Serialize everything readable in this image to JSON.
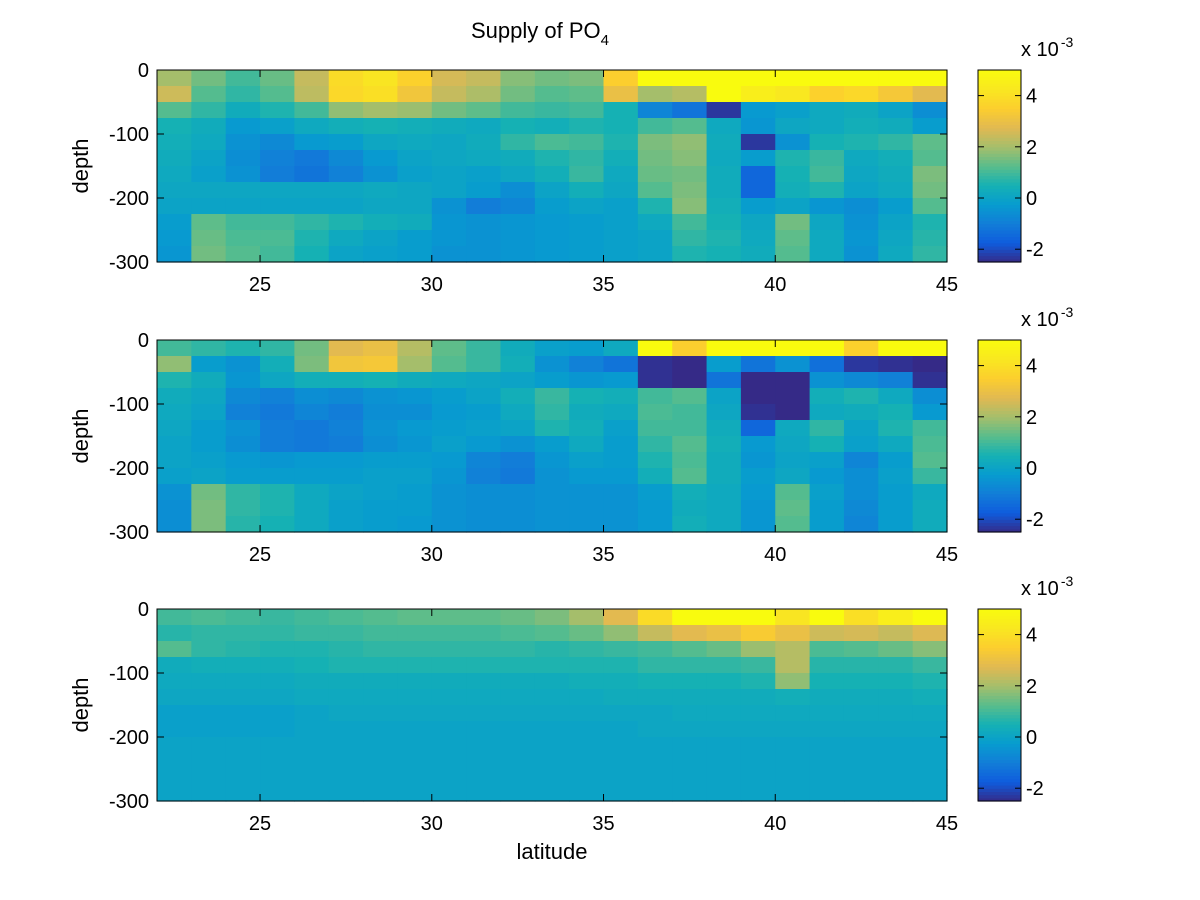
{
  "figure": {
    "title": "Supply of PO",
    "title_subscript": "4"
  },
  "colormap": "parula",
  "chart_data": [
    {
      "type": "heatmap",
      "panel": "top",
      "ylabel": "depth",
      "xlabel": "",
      "xlim": [
        22,
        45
      ],
      "ylim": [
        -300,
        0
      ],
      "xticks": [
        25,
        30,
        35,
        40,
        45
      ],
      "yticks": [
        0,
        -100,
        -200,
        -300
      ],
      "x_start": 22,
      "x_step": 1,
      "y_start": 0,
      "y_step": -25,
      "clim": [
        -2.5,
        5
      ],
      "colorbar": {
        "ticks": [
          4,
          2,
          0,
          -2
        ],
        "exponent_label": "x 10",
        "exponent": "-3"
      },
      "z": [
        [
          2.0,
          1.5,
          1.0,
          1.4,
          2.4,
          3.9,
          4.2,
          3.6,
          2.6,
          2.4,
          1.7,
          1.5,
          1.6,
          3.5,
          5.0,
          5.0,
          5.0,
          5.0,
          5.0,
          5.0,
          5.0,
          5.0,
          5.0
        ],
        [
          2.5,
          1.2,
          0.8,
          1.2,
          2.3,
          3.8,
          4.0,
          3.2,
          2.4,
          2.1,
          1.5,
          1.2,
          1.3,
          3.0,
          2.0,
          2.2,
          5.0,
          4.5,
          4.3,
          3.6,
          3.8,
          3.3,
          2.8
        ],
        [
          1.2,
          0.8,
          0.3,
          0.6,
          1.0,
          1.8,
          2.0,
          1.9,
          1.5,
          1.3,
          1.0,
          0.9,
          1.0,
          0.5,
          -0.8,
          -1.2,
          -2.3,
          -0.3,
          -0.1,
          0.2,
          0.3,
          0.0,
          -0.6
        ],
        [
          0.5,
          0.3,
          -0.3,
          -0.1,
          0.2,
          0.4,
          0.5,
          0.4,
          0.3,
          0.2,
          0.5,
          0.4,
          0.6,
          0.5,
          1.0,
          1.2,
          0.2,
          -0.4,
          0.1,
          0.2,
          0.4,
          0.3,
          -0.2
        ],
        [
          0.4,
          0.2,
          -0.5,
          -0.7,
          -0.3,
          -0.2,
          0.1,
          0.2,
          0.1,
          0.3,
          0.8,
          1.1,
          1.0,
          0.6,
          1.6,
          1.8,
          0.3,
          -2.3,
          -0.5,
          0.5,
          0.6,
          0.8,
          1.3
        ],
        [
          0.3,
          0.0,
          -0.6,
          -0.9,
          -1.1,
          -0.7,
          -0.3,
          0.0,
          0.1,
          0.2,
          0.3,
          0.6,
          0.8,
          0.4,
          1.5,
          1.7,
          0.2,
          -0.2,
          0.6,
          0.9,
          0.2,
          0.4,
          1.2
        ],
        [
          0.2,
          -0.1,
          -0.5,
          -1.0,
          -1.2,
          -0.9,
          -0.5,
          -0.1,
          0.0,
          -0.1,
          0.1,
          0.4,
          0.9,
          0.2,
          1.4,
          1.5,
          0.3,
          -1.5,
          0.5,
          1.0,
          0.1,
          0.3,
          1.6
        ],
        [
          0.1,
          0.1,
          0.1,
          0.1,
          0.1,
          0.1,
          0.2,
          0.1,
          0.0,
          -0.2,
          -0.6,
          0.0,
          0.4,
          0.1,
          1.2,
          1.6,
          0.3,
          -1.5,
          0.4,
          0.6,
          0.0,
          0.2,
          1.5
        ],
        [
          0.0,
          0.0,
          0.0,
          0.0,
          0.0,
          0.0,
          0.1,
          0.1,
          -0.5,
          -1.0,
          -0.8,
          -0.2,
          0.0,
          -0.1,
          0.6,
          1.7,
          0.4,
          -0.2,
          0.0,
          -0.4,
          -0.6,
          -0.2,
          1.2
        ],
        [
          -0.2,
          1.3,
          1.0,
          1.0,
          0.8,
          0.6,
          0.4,
          0.3,
          -0.4,
          -0.5,
          -0.4,
          -0.3,
          -0.2,
          -0.1,
          0.2,
          1.0,
          0.5,
          0.1,
          1.5,
          0.1,
          -0.5,
          0.0,
          0.6
        ],
        [
          -0.3,
          1.4,
          1.1,
          1.1,
          0.6,
          0.2,
          0.0,
          -0.2,
          -0.4,
          -0.5,
          -0.4,
          -0.3,
          -0.2,
          -0.1,
          0.0,
          0.8,
          0.6,
          0.2,
          1.3,
          0.2,
          -0.4,
          0.1,
          0.7
        ],
        [
          -0.4,
          1.5,
          1.2,
          1.0,
          0.5,
          0.0,
          -0.1,
          -0.2,
          -0.5,
          -0.5,
          -0.4,
          -0.3,
          -0.2,
          -0.1,
          0.0,
          0.6,
          0.5,
          0.3,
          1.2,
          0.2,
          -0.5,
          0.2,
          0.8
        ]
      ]
    },
    {
      "type": "heatmap",
      "panel": "middle",
      "ylabel": "depth",
      "xlabel": "",
      "xlim": [
        22,
        45
      ],
      "ylim": [
        -300,
        0
      ],
      "xticks": [
        25,
        30,
        35,
        40,
        45
      ],
      "yticks": [
        0,
        -100,
        -200,
        -300
      ],
      "x_start": 22,
      "x_step": 1,
      "y_start": 0,
      "y_step": -25,
      "clim": [
        -2.5,
        5
      ],
      "colorbar": {
        "ticks": [
          4,
          2,
          0,
          -2
        ],
        "exponent_label": "x 10",
        "exponent": "-3"
      },
      "z": [
        [
          1.0,
          0.8,
          0.6,
          0.8,
          1.5,
          2.8,
          3.0,
          2.2,
          1.3,
          0.9,
          0.3,
          -0.1,
          -0.2,
          0.2,
          5.0,
          3.5,
          5.0,
          5.0,
          5.0,
          5.0,
          3.6,
          5.0,
          5.0
        ],
        [
          1.8,
          -0.2,
          -0.5,
          0.4,
          1.6,
          3.2,
          3.3,
          2.0,
          1.2,
          0.9,
          0.4,
          -0.5,
          -0.9,
          -1.2,
          -2.4,
          -2.5,
          -0.2,
          -1.2,
          -0.5,
          -1.3,
          -2.3,
          -2.4,
          -2.5
        ],
        [
          0.6,
          0.3,
          -0.4,
          0.1,
          0.4,
          0.4,
          0.5,
          0.3,
          0.2,
          0.1,
          0.0,
          -0.2,
          -0.4,
          -0.3,
          -2.4,
          -2.5,
          -1.2,
          -2.5,
          -2.5,
          -0.5,
          -0.7,
          -0.9,
          -2.4
        ],
        [
          0.3,
          0.1,
          -0.7,
          -0.9,
          -0.6,
          -0.7,
          -0.5,
          -0.4,
          -0.2,
          0.0,
          0.4,
          0.9,
          0.5,
          0.4,
          1.0,
          1.2,
          0.0,
          -2.5,
          -2.5,
          0.4,
          0.6,
          0.2,
          -0.6
        ],
        [
          0.2,
          0.0,
          -0.9,
          -1.1,
          -0.8,
          -1.0,
          -0.6,
          -0.6,
          -0.3,
          -0.2,
          0.2,
          0.8,
          0.3,
          0.2,
          1.1,
          1.0,
          0.1,
          -2.4,
          -2.5,
          0.2,
          0.3,
          0.5,
          -0.3
        ],
        [
          0.1,
          -0.2,
          -0.5,
          -1.0,
          -1.1,
          -0.9,
          -0.5,
          -0.3,
          -0.2,
          -0.1,
          0.0,
          0.6,
          0.4,
          -0.1,
          1.0,
          1.0,
          0.3,
          -1.5,
          0.2,
          0.8,
          0.0,
          0.6,
          1.0
        ],
        [
          0.0,
          -0.2,
          -0.6,
          -1.0,
          -1.1,
          -1.0,
          -0.6,
          -0.4,
          -0.1,
          -0.3,
          -0.5,
          -0.2,
          0.2,
          -0.2,
          0.8,
          1.2,
          0.4,
          -0.3,
          0.1,
          0.5,
          -0.1,
          0.2,
          1.1
        ],
        [
          0.0,
          -0.1,
          -0.3,
          -0.4,
          -0.3,
          -0.3,
          -0.2,
          -0.2,
          -0.3,
          -0.8,
          -1.0,
          -0.4,
          -0.1,
          -0.2,
          0.6,
          1.1,
          0.3,
          -0.4,
          0.0,
          -0.1,
          -0.8,
          -0.2,
          1.2
        ],
        [
          -0.1,
          0.0,
          -0.2,
          -0.2,
          -0.2,
          -0.2,
          -0.1,
          -0.1,
          -0.4,
          -0.9,
          -1.1,
          -0.5,
          -0.3,
          -0.3,
          0.4,
          1.2,
          0.3,
          -0.2,
          0.1,
          -0.3,
          -0.6,
          -0.1,
          0.9
        ],
        [
          -0.5,
          1.5,
          0.8,
          0.6,
          0.2,
          0.0,
          -0.1,
          -0.2,
          -0.5,
          -0.6,
          -0.6,
          -0.5,
          -0.5,
          -0.5,
          -0.2,
          0.4,
          0.2,
          -0.3,
          1.2,
          -0.1,
          -0.6,
          -0.2,
          0.2
        ],
        [
          -0.6,
          1.6,
          0.8,
          0.6,
          0.2,
          -0.1,
          -0.2,
          -0.2,
          -0.5,
          -0.6,
          -0.6,
          -0.5,
          -0.5,
          -0.5,
          -0.3,
          0.3,
          0.2,
          -0.4,
          1.3,
          -0.2,
          -0.7,
          -0.2,
          0.3
        ],
        [
          -0.6,
          1.6,
          0.7,
          0.5,
          0.2,
          -0.1,
          -0.2,
          -0.3,
          -0.5,
          -0.6,
          -0.6,
          -0.5,
          -0.5,
          -0.5,
          -0.3,
          0.4,
          0.2,
          -0.4,
          1.2,
          -0.2,
          -0.8,
          -0.2,
          0.3
        ]
      ]
    },
    {
      "type": "heatmap",
      "panel": "bottom",
      "ylabel": "depth",
      "xlabel": "latitude",
      "xlim": [
        22,
        45
      ],
      "ylim": [
        -300,
        0
      ],
      "xticks": [
        25,
        30,
        35,
        40,
        45
      ],
      "yticks": [
        0,
        -100,
        -200,
        -300
      ],
      "x_start": 22,
      "x_step": 1,
      "y_start": 0,
      "y_step": -25,
      "clim": [
        -2.5,
        5
      ],
      "colorbar": {
        "ticks": [
          4,
          2,
          0,
          -2
        ],
        "exponent_label": "x 10",
        "exponent": "-3"
      },
      "z": [
        [
          1.0,
          1.1,
          1.0,
          0.9,
          1.0,
          1.1,
          1.2,
          1.3,
          1.3,
          1.3,
          1.4,
          1.6,
          2.0,
          2.8,
          3.9,
          5.0,
          5.0,
          5.0,
          4.2,
          5.0,
          4.0,
          4.5,
          5.0
        ],
        [
          0.7,
          0.8,
          0.8,
          0.8,
          0.9,
          0.9,
          1.0,
          1.0,
          1.0,
          1.0,
          1.1,
          1.2,
          1.4,
          1.8,
          2.4,
          2.8,
          3.0,
          3.4,
          3.0,
          2.5,
          2.6,
          2.4,
          2.7
        ],
        [
          1.2,
          0.8,
          0.7,
          0.6,
          0.6,
          0.7,
          0.8,
          0.8,
          0.8,
          0.8,
          0.8,
          0.7,
          0.8,
          0.9,
          1.0,
          1.2,
          1.4,
          1.9,
          2.2,
          1.1,
          1.2,
          1.4,
          1.7
        ],
        [
          0.3,
          0.4,
          0.4,
          0.4,
          0.5,
          0.6,
          0.6,
          0.6,
          0.6,
          0.6,
          0.6,
          0.6,
          0.6,
          0.6,
          0.8,
          0.8,
          0.8,
          0.9,
          2.2,
          0.7,
          0.7,
          0.7,
          0.9
        ],
        [
          0.2,
          0.2,
          0.2,
          0.2,
          0.3,
          0.3,
          0.3,
          0.3,
          0.3,
          0.3,
          0.3,
          0.3,
          0.4,
          0.4,
          0.5,
          0.5,
          0.5,
          0.6,
          1.8,
          0.5,
          0.5,
          0.5,
          0.6
        ],
        [
          0.1,
          0.1,
          0.1,
          0.1,
          0.2,
          0.2,
          0.2,
          0.2,
          0.2,
          0.2,
          0.2,
          0.2,
          0.2,
          0.3,
          0.3,
          0.3,
          0.3,
          0.3,
          0.4,
          0.3,
          0.3,
          0.3,
          0.4
        ],
        [
          -0.1,
          -0.1,
          -0.1,
          -0.1,
          0.0,
          0.1,
          0.1,
          0.1,
          0.1,
          0.1,
          0.1,
          0.1,
          0.1,
          0.1,
          0.1,
          0.2,
          0.2,
          0.2,
          0.2,
          0.2,
          0.2,
          0.2,
          0.2
        ],
        [
          -0.1,
          -0.1,
          -0.1,
          -0.1,
          0.0,
          0.0,
          0.0,
          0.0,
          0.0,
          0.0,
          0.0,
          0.0,
          0.0,
          0.0,
          0.1,
          0.1,
          0.1,
          0.1,
          0.1,
          0.1,
          0.1,
          0.1,
          0.1
        ],
        [
          0.0,
          0.0,
          0.0,
          0.0,
          0.0,
          0.0,
          0.0,
          0.0,
          0.0,
          0.0,
          0.0,
          0.0,
          0.0,
          0.0,
          0.0,
          0.0,
          0.0,
          0.0,
          0.0,
          0.0,
          0.0,
          0.0,
          0.0
        ],
        [
          0.0,
          0.0,
          0.0,
          0.0,
          0.0,
          0.0,
          0.0,
          0.0,
          0.0,
          0.0,
          0.0,
          0.0,
          0.0,
          0.0,
          0.0,
          0.0,
          0.0,
          0.0,
          0.0,
          0.0,
          0.0,
          0.0,
          0.0
        ],
        [
          0.0,
          0.0,
          0.0,
          0.0,
          0.0,
          0.0,
          0.0,
          0.0,
          0.0,
          0.0,
          0.0,
          0.0,
          0.0,
          0.0,
          0.0,
          0.0,
          0.0,
          0.0,
          0.0,
          0.0,
          0.0,
          0.0,
          0.0
        ],
        [
          0.0,
          0.0,
          0.0,
          0.0,
          0.0,
          0.0,
          0.0,
          0.0,
          0.0,
          0.0,
          0.0,
          0.0,
          0.0,
          0.0,
          0.0,
          0.0,
          0.0,
          0.0,
          0.0,
          0.0,
          0.0,
          0.0,
          0.0
        ]
      ]
    }
  ]
}
